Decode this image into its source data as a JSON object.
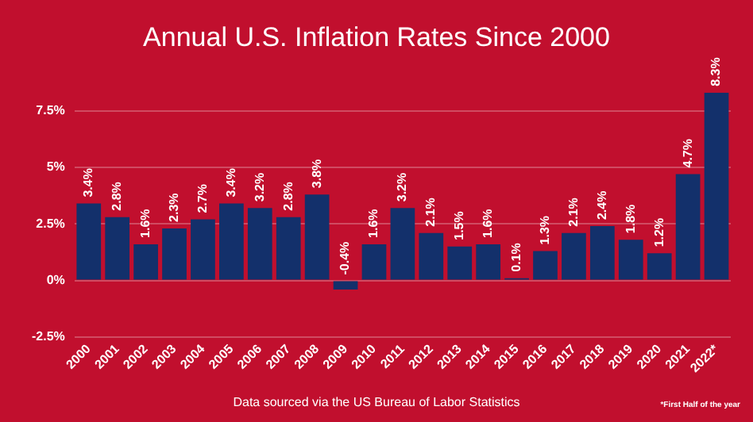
{
  "chart_data": {
    "type": "bar",
    "title": "Annual U.S. Inflation Rates Since 2000",
    "categories": [
      "2000",
      "2001",
      "2002",
      "2003",
      "2004",
      "2005",
      "2006",
      "2007",
      "2008",
      "2009",
      "2010",
      "2011",
      "2012",
      "2013",
      "2014",
      "2015",
      "2016",
      "2017",
      "2018",
      "2019",
      "2020",
      "2021",
      "2022*"
    ],
    "values": [
      3.4,
      2.8,
      1.6,
      2.3,
      2.7,
      3.4,
      3.2,
      2.8,
      3.8,
      -0.4,
      1.6,
      3.2,
      2.1,
      1.5,
      1.6,
      0.1,
      1.3,
      2.1,
      2.4,
      1.8,
      1.2,
      4.7,
      8.3
    ],
    "value_labels": [
      "3.4%",
      "2.8%",
      "1.6%",
      "2.3%",
      "2.7%",
      "3.4%",
      "3.2%",
      "2.8%",
      "3.8%",
      "-0.4%",
      "1.6%",
      "3.2%",
      "2.1%",
      "1.5%",
      "1.6%",
      "0.1%",
      "1.3%",
      "2.1%",
      "2.4%",
      "1.8%",
      "1.2%",
      "4.7%",
      "8.3%"
    ],
    "color": "#13306b",
    "ylim": [
      -2.5,
      8.3
    ],
    "yticks": [
      {
        "value": -2.5,
        "label": "-2.5%"
      },
      {
        "value": 0,
        "label": "0%"
      },
      {
        "value": 2.5,
        "label": "2.5%"
      },
      {
        "value": 5,
        "label": "5%"
      },
      {
        "value": 7.5,
        "label": "7.5%"
      }
    ],
    "grid": "y",
    "annotations": [
      "Data sourced via the US Bureau of Labor Statistics",
      "*First Half of the year"
    ]
  }
}
